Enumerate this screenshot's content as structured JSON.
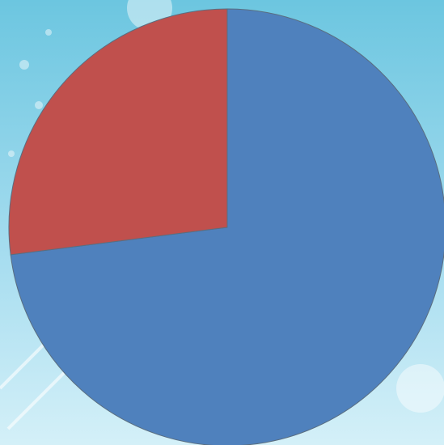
{
  "chart_data": {
    "type": "pie",
    "values": [
      73,
      27
    ],
    "colors": [
      "#4f81bd",
      "#c0504d"
    ],
    "start_angle": 0,
    "direction": "clockwise"
  }
}
